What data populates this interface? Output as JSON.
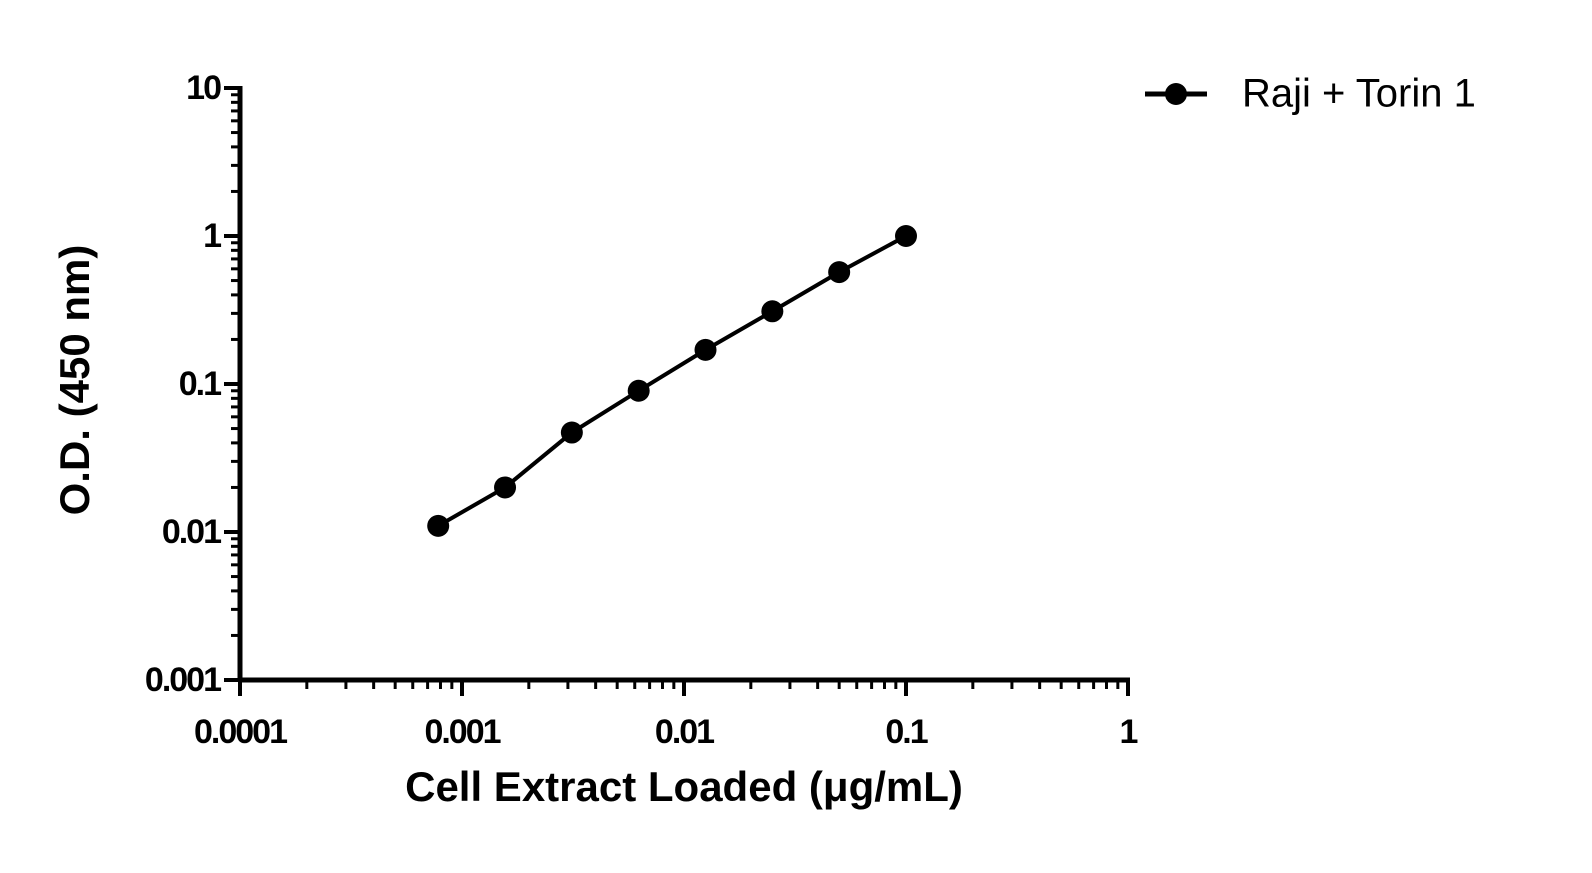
{
  "chart_data": {
    "type": "line",
    "x_label": "Cell Extract Loaded (μg/mL)",
    "y_label": "O.D. (450 nm)",
    "x": [
      0.00078125,
      0.0015625,
      0.003125,
      0.00625,
      0.0125,
      0.025,
      0.05,
      0.1
    ],
    "series": [
      {
        "name": "Raji + Torin 1",
        "color": "#000000",
        "marker": "circle",
        "values": [
          0.011,
          0.02,
          0.047,
          0.09,
          0.17,
          0.31,
          0.57,
          1.0
        ]
      }
    ],
    "xlim": [
      0.0001,
      1
    ],
    "xticks": [
      0.0001,
      0.001,
      0.01,
      0.1,
      1
    ],
    "ylim": [
      0.001,
      10
    ],
    "yticks": [
      0.001,
      0.01,
      0.1,
      1,
      10
    ],
    "xscale": "log",
    "yscale": "log",
    "grid": false,
    "legend": "top-right"
  }
}
